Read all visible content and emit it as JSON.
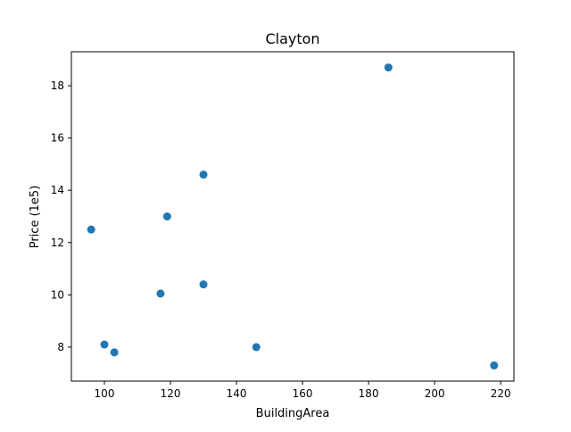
{
  "chart_data": {
    "type": "scatter",
    "title": "Clayton",
    "xlabel": "BuildingArea",
    "ylabel": "Price (1e5)",
    "xlim": [
      90,
      224
    ],
    "ylim": [
      6.7,
      19.3
    ],
    "xticks": [
      100,
      120,
      140,
      160,
      180,
      200,
      220
    ],
    "yticks": [
      8,
      10,
      12,
      14,
      16,
      18
    ],
    "grid": false,
    "marker_color": "#1f77b4",
    "points": [
      {
        "x": 96,
        "y": 12.5
      },
      {
        "x": 100,
        "y": 8.1
      },
      {
        "x": 103,
        "y": 7.8
      },
      {
        "x": 117,
        "y": 10.05
      },
      {
        "x": 119,
        "y": 13.0
      },
      {
        "x": 130,
        "y": 14.6
      },
      {
        "x": 130,
        "y": 10.4
      },
      {
        "x": 146,
        "y": 8.0
      },
      {
        "x": 186,
        "y": 18.7
      },
      {
        "x": 218,
        "y": 7.3
      }
    ]
  }
}
